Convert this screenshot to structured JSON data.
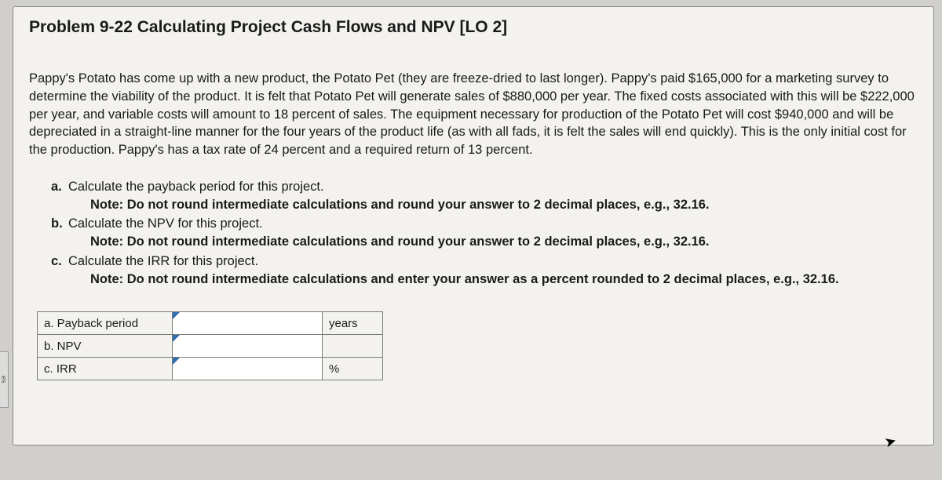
{
  "sidebar": {
    "label": "es"
  },
  "title": "Problem 9-22 Calculating Project Cash Flows and NPV [LO 2]",
  "body": "Pappy's Potato has come up with a new product, the Potato Pet (they are freeze-dried to last longer). Pappy's paid $165,000 for a marketing survey to determine the viability of the product. It is felt that Potato Pet will generate sales of $880,000 per year. The fixed costs associated with this will be $222,000 per year, and variable costs will amount to 18 percent of sales. The equipment necessary for production of the Potato Pet will cost $940,000 and will be depreciated in a straight-line manner for the four years of the product life (as with all fads, it is felt the sales will end quickly). This is the only initial cost for the production. Pappy's has a tax rate of 24 percent and a required return of 13 percent.",
  "questions": {
    "a": {
      "letter": "a.",
      "text": "Calculate the payback period for this project.",
      "note": "Note: Do not round intermediate calculations and round your answer to 2 decimal places, e.g., 32.16."
    },
    "b": {
      "letter": "b.",
      "text": "Calculate the NPV for this project.",
      "note": "Note: Do not round intermediate calculations and round your answer to 2 decimal places, e.g., 32.16."
    },
    "c": {
      "letter": "c.",
      "text": "Calculate the IRR for this project.",
      "note": "Note: Do not round intermediate calculations and enter your answer as a percent rounded to 2 decimal places, e.g., 32.16."
    }
  },
  "answers": {
    "rows": [
      {
        "label": "a. Payback period",
        "value": "",
        "unit": "years"
      },
      {
        "label": "b. NPV",
        "value": "",
        "unit": ""
      },
      {
        "label": "c. IRR",
        "value": "",
        "unit": "%"
      }
    ]
  },
  "colors": {
    "page_bg": "#f3f2ee",
    "outer_bg": "#d0cfcb",
    "border": "#7a7a76",
    "marker": "#2f6fb0",
    "input_bg": "#ffffff"
  }
}
